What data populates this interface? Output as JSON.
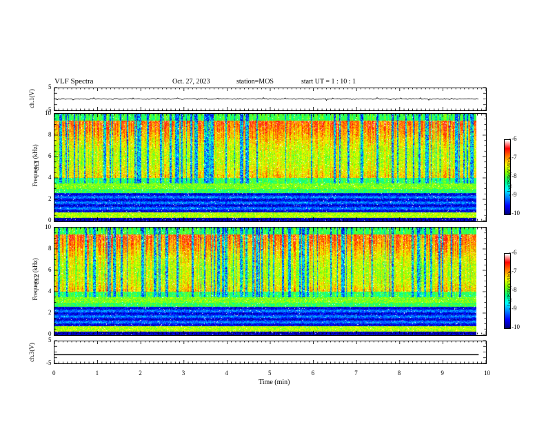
{
  "header": {
    "title": "VLF Spectra",
    "date": "Oct. 27, 2023",
    "station": "station=MOS",
    "start": "start UT =   1 : 10 : 1"
  },
  "chart_data": [
    {
      "type": "line",
      "ylabel": "ch.1(V)",
      "ylim": [
        -5,
        5
      ],
      "y_ticks": [
        "5",
        "-5"
      ],
      "xlim": [
        0,
        10
      ],
      "series_level": 0,
      "data_extent_min": 9.83
    },
    {
      "type": "heatmap",
      "ylabel": "Frequency (kHz)",
      "ylabel_ch": "ch.1",
      "ylim": [
        0,
        10
      ],
      "y_ticks": [
        "0",
        "2",
        "4",
        "6",
        "8",
        "10"
      ],
      "xlim": [
        0,
        10
      ],
      "colorbar": {
        "label": "log(PSD)(V²/Hz)",
        "range": [
          -10,
          -6
        ],
        "ticks": [
          "-6",
          "-7",
          "-8",
          "-9",
          "-10"
        ]
      }
    },
    {
      "type": "heatmap",
      "ylabel": "Frequency (kHz)",
      "ylabel_ch": "ch.2",
      "ylim": [
        0,
        10
      ],
      "y_ticks": [
        "0",
        "2",
        "4",
        "6",
        "8",
        "10"
      ],
      "xlim": [
        0,
        10
      ],
      "colorbar": {
        "label": "log(PSD)(V²/Hz)",
        "range": [
          -10,
          -6
        ],
        "ticks": [
          "-6",
          "-7",
          "-8",
          "-9",
          "-10"
        ]
      }
    },
    {
      "type": "line",
      "ylabel": "ch.3(V)",
      "ylim": [
        -5,
        5
      ],
      "y_ticks": [
        "5",
        "-5"
      ],
      "xlim": [
        0,
        10
      ],
      "series_level": -1.2
    }
  ],
  "xaxis": {
    "label": "Time (min)",
    "ticks": [
      "0",
      "1",
      "2",
      "3",
      "4",
      "5",
      "6",
      "7",
      "8",
      "9",
      "10"
    ]
  },
  "colors": {
    "colormap": [
      "#000080",
      "#0000ff",
      "#0080ff",
      "#00ffff",
      "#00ff80",
      "#80ff00",
      "#ffff00",
      "#ff8000",
      "#ff0000",
      "#ffffff"
    ]
  }
}
